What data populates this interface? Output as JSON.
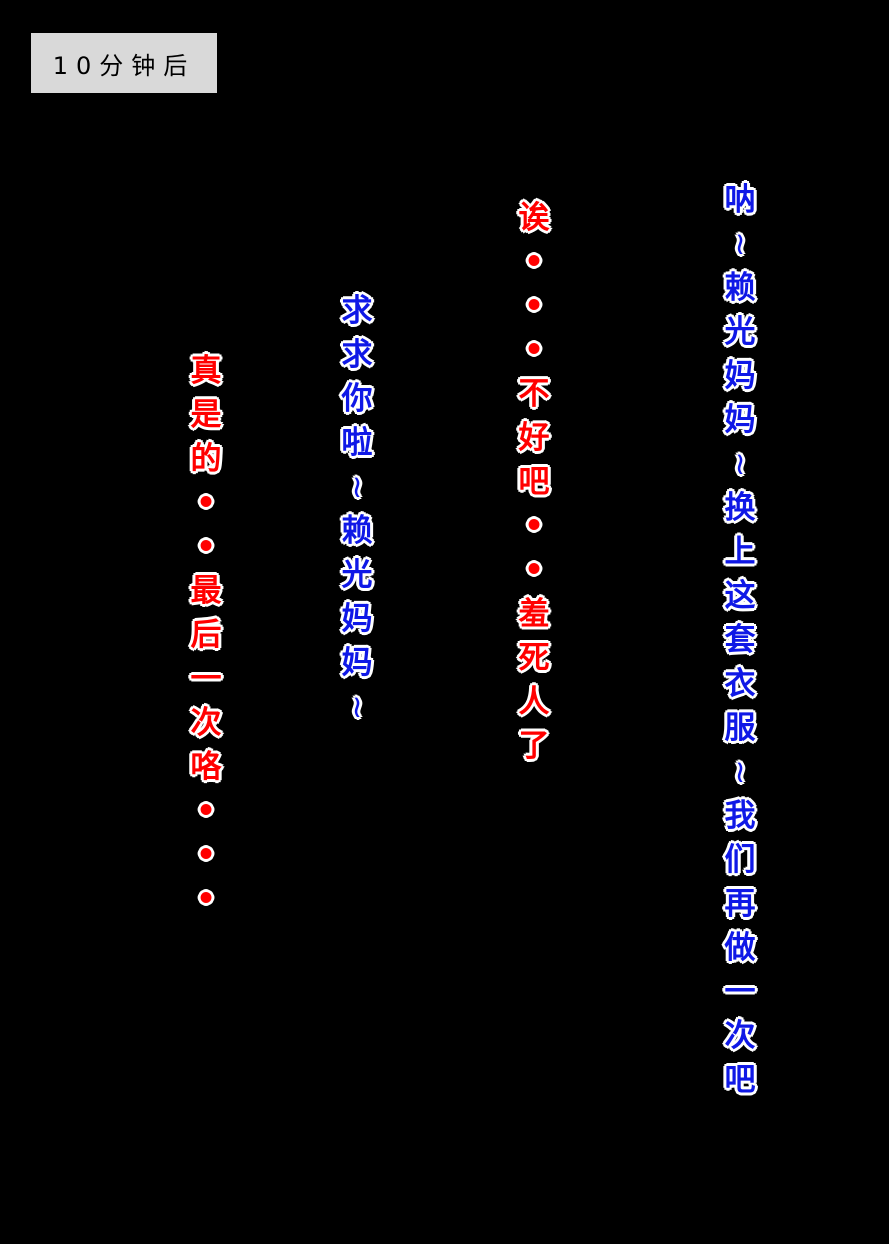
{
  "caption": "10分钟后",
  "colors": {
    "blue_speech": "#0f18e6",
    "red_speech": "#ff0000",
    "outline": "#ffffff",
    "background": "#000000",
    "caption_bg": "#d9d9d9"
  },
  "lines": [
    {
      "speaker_color": "blue",
      "text": "呐~赖光妈妈~换上这套衣服~我们再做一次吧"
    },
    {
      "speaker_color": "red",
      "text": "诶•••不好吧••羞死人了"
    },
    {
      "speaker_color": "blue",
      "text": "求求你啦~赖光妈妈~"
    },
    {
      "speaker_color": "red",
      "text": "真是的••最后一次咯•••"
    }
  ]
}
